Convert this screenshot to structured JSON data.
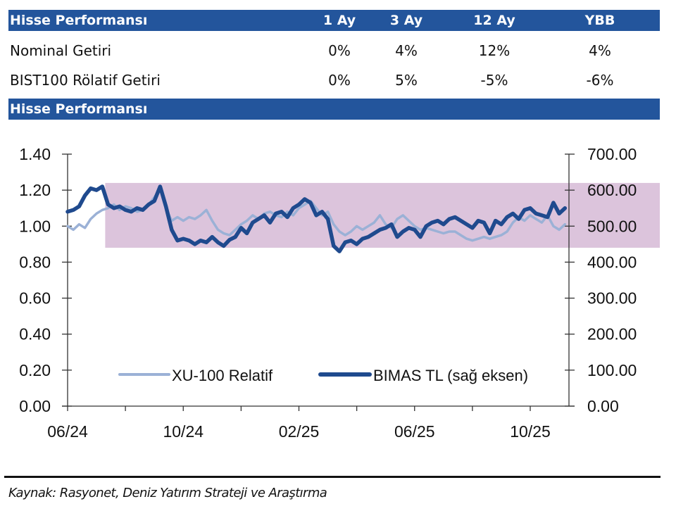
{
  "table": {
    "title": "Hisse Performansı",
    "columns": [
      "1 Ay",
      "3 Ay",
      "12 Ay",
      "YBB"
    ],
    "rows": [
      {
        "label": "Nominal Getiri",
        "values": [
          "0%",
          "4%",
          "12%",
          "4%"
        ]
      },
      {
        "label": "BIST100 Rölatif Getiri",
        "values": [
          "0%",
          "5%",
          "-5%",
          "-6%"
        ]
      }
    ]
  },
  "chart_section_title": "Hisse Performansı",
  "colors": {
    "header_bg": "#23559c",
    "band": "#dcc4dc",
    "relative_line": "#9bb1d6",
    "price_line": "#1f4a8e"
  },
  "chart_data": {
    "type": "line",
    "title": "",
    "x_ticks": [
      "06/24",
      "10/24",
      "02/25",
      "06/25",
      "10/25"
    ],
    "x_range": [
      "2024-06",
      "2025-11"
    ],
    "y_left": {
      "label": "",
      "range": [
        0,
        1.4
      ],
      "ticks": [
        "0.00",
        "0.20",
        "0.40",
        "0.60",
        "0.80",
        "1.00",
        "1.20",
        "1.40"
      ]
    },
    "y_right": {
      "label": "",
      "range": [
        0,
        700
      ],
      "ticks": [
        "0.00",
        "100.00",
        "200.00",
        "300.00",
        "400.00",
        "500.00",
        "600.00",
        "700.00"
      ]
    },
    "band": {
      "y_right_from": 440,
      "y_right_to": 620,
      "x_from_month": 1.3,
      "x_to_month": "end"
    },
    "legend_position": "bottom-center",
    "series": [
      {
        "name": "XU-100 Relatif",
        "axis": "left",
        "x_months": [
          0,
          0.2,
          0.4,
          0.6,
          0.8,
          1.0,
          1.2,
          1.4,
          1.6,
          1.8,
          2.0,
          2.2,
          2.4,
          2.6,
          2.8,
          3.0,
          3.2,
          3.4,
          3.6,
          3.8,
          4.0,
          4.2,
          4.4,
          4.6,
          4.8,
          5.0,
          5.2,
          5.4,
          5.6,
          5.8,
          6.0,
          6.2,
          6.4,
          6.6,
          6.8,
          7.0,
          7.2,
          7.4,
          7.6,
          7.8,
          8.0,
          8.2,
          8.4,
          8.6,
          8.8,
          9.0,
          9.2,
          9.4,
          9.6,
          9.8,
          10.0,
          10.2,
          10.4,
          10.6,
          10.8,
          11.0,
          11.2,
          11.4,
          11.6,
          11.8,
          12.0,
          12.2,
          12.4,
          12.6,
          12.8,
          13.0,
          13.2,
          13.4,
          13.6,
          13.8,
          14.0,
          14.2,
          14.4,
          14.6,
          14.8,
          15.0,
          15.2,
          15.4,
          15.6,
          15.8,
          16.0,
          16.2,
          16.4,
          16.6,
          16.8,
          17.0,
          17.2
        ],
        "values": [
          1.0,
          0.98,
          1.01,
          0.99,
          1.04,
          1.07,
          1.09,
          1.1,
          1.12,
          1.09,
          1.11,
          1.1,
          1.08,
          1.09,
          1.12,
          1.16,
          1.21,
          1.1,
          1.03,
          1.05,
          1.03,
          1.05,
          1.04,
          1.06,
          1.09,
          1.03,
          0.98,
          0.96,
          0.95,
          0.98,
          1.01,
          1.03,
          1.06,
          1.04,
          1.07,
          1.08,
          1.06,
          1.05,
          1.08,
          1.06,
          1.1,
          1.12,
          1.14,
          1.1,
          1.06,
          1.08,
          1.01,
          0.97,
          0.95,
          0.97,
          1.0,
          0.98,
          1.0,
          1.02,
          1.06,
          1.01,
          0.99,
          1.04,
          1.06,
          1.03,
          1.0,
          0.98,
          0.99,
          0.98,
          0.97,
          0.96,
          0.97,
          0.97,
          0.95,
          0.93,
          0.92,
          0.93,
          0.94,
          0.93,
          0.94,
          0.95,
          0.97,
          1.02,
          1.05,
          1.03,
          1.06,
          1.04,
          1.02,
          1.06,
          1.0,
          0.98,
          1.01
        ]
      },
      {
        "name": "BIMAS TL (sağ eksen)",
        "axis": "right",
        "x_months": [
          0,
          0.2,
          0.4,
          0.6,
          0.8,
          1.0,
          1.2,
          1.4,
          1.6,
          1.8,
          2.0,
          2.2,
          2.4,
          2.6,
          2.8,
          3.0,
          3.2,
          3.4,
          3.6,
          3.8,
          4.0,
          4.2,
          4.4,
          4.6,
          4.8,
          5.0,
          5.2,
          5.4,
          5.6,
          5.8,
          6.0,
          6.2,
          6.4,
          6.6,
          6.8,
          7.0,
          7.2,
          7.4,
          7.6,
          7.8,
          8.0,
          8.2,
          8.4,
          8.6,
          8.8,
          9.0,
          9.2,
          9.4,
          9.6,
          9.8,
          10.0,
          10.2,
          10.4,
          10.6,
          10.8,
          11.0,
          11.2,
          11.4,
          11.6,
          11.8,
          12.0,
          12.2,
          12.4,
          12.6,
          12.8,
          13.0,
          13.2,
          13.4,
          13.6,
          13.8,
          14.0,
          14.2,
          14.4,
          14.6,
          14.8,
          15.0,
          15.2,
          15.4,
          15.6,
          15.8,
          16.0,
          16.2,
          16.4,
          16.6,
          16.8,
          17.0,
          17.2
        ],
        "values": [
          540,
          545,
          555,
          585,
          605,
          600,
          610,
          560,
          550,
          555,
          545,
          540,
          550,
          545,
          560,
          570,
          610,
          555,
          490,
          460,
          465,
          460,
          450,
          460,
          455,
          470,
          455,
          445,
          462,
          470,
          495,
          480,
          510,
          520,
          530,
          510,
          535,
          540,
          525,
          550,
          560,
          575,
          565,
          530,
          540,
          520,
          445,
          430,
          455,
          460,
          450,
          465,
          470,
          480,
          490,
          495,
          505,
          470,
          485,
          495,
          490,
          470,
          500,
          510,
          515,
          505,
          520,
          525,
          515,
          505,
          495,
          515,
          510,
          480,
          515,
          505,
          525,
          535,
          520,
          545,
          550,
          535,
          530,
          525,
          565,
          535,
          550
        ]
      }
    ]
  },
  "source": "Kaynak: Rasyonet, Deniz Yatırım Strateji ve Araştırma"
}
